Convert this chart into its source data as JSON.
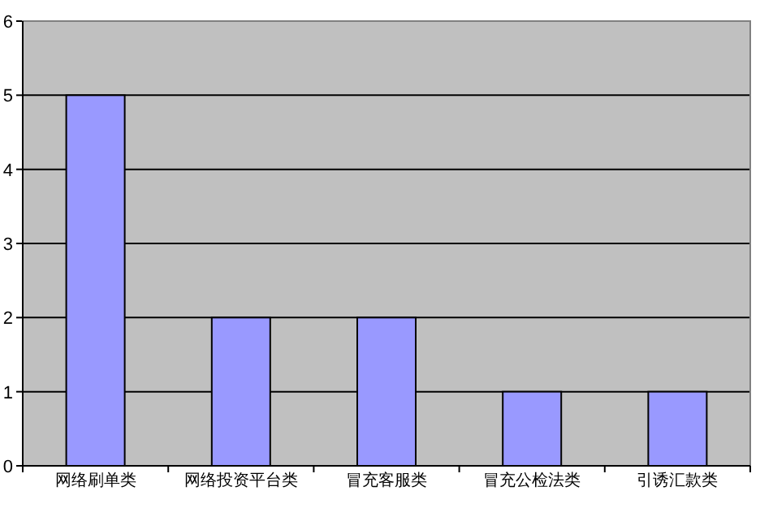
{
  "chart_data": {
    "type": "bar",
    "categories": [
      "网络刷单类",
      "网络投资平台类",
      "冒充客服类",
      "冒充公检法类",
      "引诱汇款类"
    ],
    "values": [
      5,
      2,
      2,
      1,
      1
    ],
    "color": "#9999ff",
    "ylim": [
      0,
      6
    ],
    "yticks": [
      0,
      1,
      2,
      3,
      4,
      5,
      6
    ],
    "grid": "y"
  }
}
